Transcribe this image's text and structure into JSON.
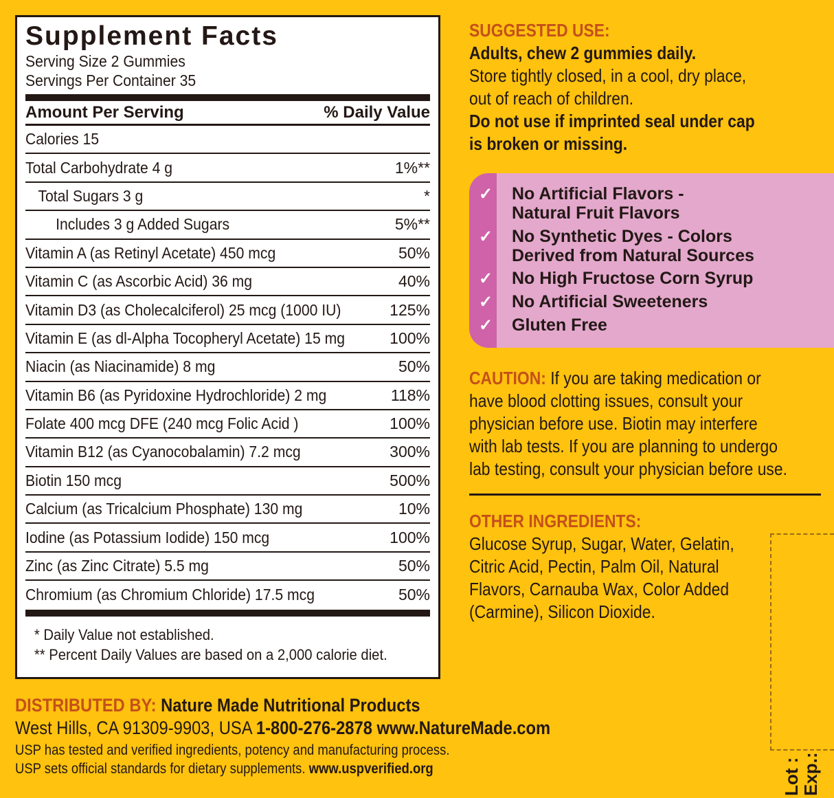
{
  "facts": {
    "title": "Supplement Facts",
    "serving_size": "Serving Size 2 Gummies",
    "servings_per_container": "Servings Per Container 35",
    "header_amount": "Amount Per Serving",
    "header_dv": "% Daily Value",
    "rows": [
      {
        "name": "Calories  15",
        "dv": "",
        "indent": 0
      },
      {
        "name": "Total Carbohydrate  4 g",
        "dv": "1%**",
        "indent": 0
      },
      {
        "name": "Total Sugars  3 g",
        "dv": "*",
        "indent": 1
      },
      {
        "name": "Includes  3 g Added Sugars",
        "dv": "5%**",
        "indent": 2
      },
      {
        "name": "Vitamin A (as Retinyl Acetate)  450 mcg",
        "dv": "50%",
        "indent": 0
      },
      {
        "name": "Vitamin C (as Ascorbic Acid)  36 mg",
        "dv": "40%",
        "indent": 0
      },
      {
        "name": "Vitamin D3 (as Cholecalciferol) 25 mcg (1000 IU)",
        "dv": "125%",
        "indent": 0
      },
      {
        "name": "Vitamin E (as dl-Alpha Tocopheryl Acetate) 15 mg",
        "dv": "100%",
        "indent": 0
      },
      {
        "name": "Niacin (as Niacinamide)  8 mg",
        "dv": "50%",
        "indent": 0
      },
      {
        "name": "Vitamin B6 (as Pyridoxine Hydrochloride)  2 mg",
        "dv": "118%",
        "indent": 0
      },
      {
        "name": "Folate  400 mcg DFE (240 mcg Folic Acid )",
        "dv": "100%",
        "indent": 0
      },
      {
        "name": "Vitamin B12 (as Cyanocobalamin)  7.2 mcg",
        "dv": "300%",
        "indent": 0
      },
      {
        "name": "Biotin  150 mcg",
        "dv": "500%",
        "indent": 0
      },
      {
        "name": "Calcium (as Tricalcium Phosphate)  130 mg",
        "dv": "10%",
        "indent": 0
      },
      {
        "name": "Iodine (as Potassium Iodide)  150 mcg",
        "dv": "100%",
        "indent": 0
      },
      {
        "name": "Zinc (as Zinc Citrate)  5.5 mg",
        "dv": "50%",
        "indent": 0
      },
      {
        "name": "Chromium (as Chromium Chloride)  17.5 mcg",
        "dv": "50%",
        "indent": 0
      }
    ],
    "footnote1": "* Daily Value not established.",
    "footnote2": "** Percent Daily Values are based on a 2,000 calorie diet."
  },
  "suggested": {
    "heading": "SUGGESTED USE:",
    "line1": "Adults, chew 2 gummies daily.",
    "line2": "Store tightly closed, in a cool, dry place,",
    "line3": "out of reach of children.",
    "line4": "Do not use if imprinted seal under cap",
    "line5": "is broken or missing."
  },
  "claims": [
    "No Artificial Flavors -",
    "Natural Fruit Flavors",
    "No Synthetic Dyes - Colors",
    "Derived from Natural Sources",
    "No High Fructose Corn Syrup",
    "No Artificial Sweeteners",
    "Gluten Free"
  ],
  "check_icon": "✓",
  "caution": {
    "heading": "CAUTION:",
    "line1": " If you are taking medication or",
    "line2": "have blood clotting issues, consult your",
    "line3": "physician before use. Biotin may interfere",
    "line4": "with lab tests. If you are planning to undergo",
    "line5": "lab testing, consult your physician before use."
  },
  "other": {
    "heading": "OTHER INGREDIENTS:",
    "line1": "Glucose Syrup, Sugar, Water, Gelatin,",
    "line2": "Citric Acid, Pectin, Palm Oil, Natural",
    "line3": "Flavors, Carnauba Wax, Color Added",
    "line4": "(Carmine), Silicon Dioxide."
  },
  "distributed": {
    "heading": "DISTRIBUTED BY:",
    "company": " Nature Made Nutritional Products",
    "address": "West Hills, CA 91309-9903, USA ",
    "phone": "1-800-276-2878 www.NatureMade.com",
    "usp1": "USP has tested and verified ingredients, potency and manufacturing process.",
    "usp2": "USP sets official standards for dietary supplements. ",
    "usp_url": "www.uspverified.org"
  },
  "lot_label": "Lot :",
  "exp_label": "Exp.:",
  "colors": {
    "background": "#FFC20E",
    "heading_orange": "#C4501A",
    "claims_pink": "#E3A8CC",
    "claims_strip": "#CF62A8"
  }
}
